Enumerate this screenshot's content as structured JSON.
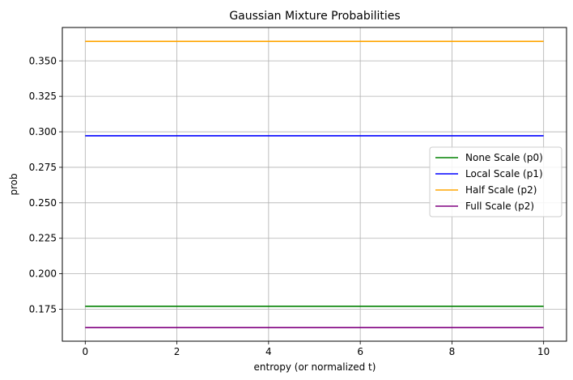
{
  "chart_data": {
    "type": "line",
    "title": "Gaussian Mixture Probabilities",
    "xlabel": "entropy (or normalized t)",
    "ylabel": "prob",
    "xlim": [
      -0.5,
      10.5
    ],
    "ylim": [
      0.1525,
      0.3735
    ],
    "xticks": [
      0,
      2,
      4,
      6,
      8,
      10
    ],
    "xtick_labels": [
      "0",
      "2",
      "4",
      "6",
      "8",
      "10"
    ],
    "yticks": [
      0.175,
      0.2,
      0.225,
      0.25,
      0.275,
      0.3,
      0.325,
      0.35
    ],
    "ytick_labels": [
      "0.175",
      "0.200",
      "0.225",
      "0.250",
      "0.275",
      "0.300",
      "0.325",
      "0.350"
    ],
    "grid": true,
    "legend_position": "center-right",
    "series": [
      {
        "name": "None Scale (p0)",
        "color": "#008000",
        "x": [
          0,
          10
        ],
        "y": [
          0.1771,
          0.1771
        ]
      },
      {
        "name": "Local Scale (p1)",
        "color": "#0000ff",
        "x": [
          0,
          10
        ],
        "y": [
          0.2972,
          0.2972
        ]
      },
      {
        "name": "Half Scale (p2)",
        "color": "#ffa500",
        "x": [
          0,
          10
        ],
        "y": [
          0.3637,
          0.3637
        ]
      },
      {
        "name": "Full Scale (p2)",
        "color": "#800080",
        "x": [
          0,
          10
        ],
        "y": [
          0.1621,
          0.1621
        ]
      }
    ]
  }
}
